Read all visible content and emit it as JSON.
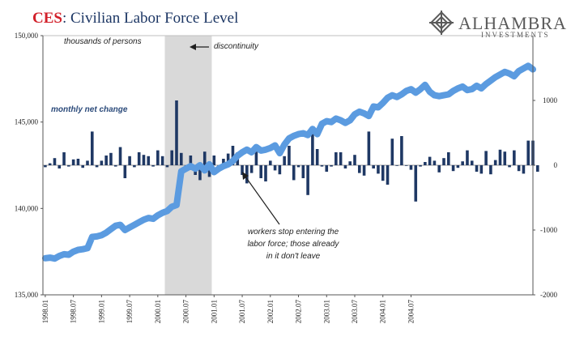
{
  "header": {
    "title_prefix": "CES",
    "title_rest": ": Civilian Labor Force Level",
    "logo_name": "ALHAMBRA",
    "logo_sub": "INVESTMENTS"
  },
  "notes": {
    "units": "thousands of persons",
    "series2": "monthly net change",
    "discontinuity": "discontinuity",
    "workers": [
      "workers stop entering the",
      "labor force; those already",
      "in it don't leave"
    ]
  },
  "colors": {
    "line": "#5b9be0",
    "bars": "#1f3864",
    "shade": "#d9d9d9",
    "title": "#1c3664",
    "accent": "#d2202a"
  },
  "chart_data": {
    "type": "bar",
    "x_tick_labels": [
      "1998.01",
      "1998.07",
      "1999.01",
      "1999.07",
      "2000.01",
      "2000.07",
      "2001.01",
      "2001.07",
      "2002.01",
      "2002.07",
      "2003.01",
      "2003.07",
      "2004.01",
      "2004.07"
    ],
    "y_left": {
      "ticks": [
        "150,000",
        "145,000",
        "140,000",
        "135,000"
      ],
      "range": [
        135000,
        150000
      ]
    },
    "y_right": {
      "ticks": [
        "1000",
        "0",
        "-1000",
        "-2000"
      ],
      "range": [
        -2000,
        2000
      ]
    },
    "shaded_period": [
      "2000.03",
      "2001.01"
    ],
    "series": [
      {
        "name": "Civilian Labor Force Level",
        "kind": "line",
        "axis": "left",
        "start": "1998.01",
        "values": [
          137120,
          137150,
          137100,
          137250,
          137350,
          137320,
          137500,
          137600,
          137640,
          137700,
          138350,
          138380,
          138450,
          138600,
          138800,
          139000,
          139050,
          138750,
          138900,
          139050,
          139200,
          139350,
          139450,
          139400,
          139600,
          139750,
          139850,
          140100,
          140200,
          142150,
          142300,
          142450,
          142300,
          142500,
          142200,
          142550,
          142100,
          142300,
          142450,
          142550,
          142750,
          143050,
          143250,
          143400,
          143250,
          143550,
          143350,
          143400,
          143500,
          143650,
          143200,
          143700,
          144050,
          144200,
          144300,
          144350,
          144250,
          144600,
          144300,
          144900,
          145050,
          145000,
          145200,
          145100,
          144950,
          145100,
          145450,
          145600,
          145500,
          145350,
          145900,
          145850,
          146100,
          146400,
          146550,
          146450,
          146600,
          146800,
          146900,
          146700,
          146900,
          147150,
          146750,
          146550,
          146500,
          146550,
          146600,
          146800,
          146950,
          147050,
          146850,
          146900,
          147100,
          146950,
          147200,
          147400,
          147600,
          147750,
          147900,
          147800,
          147650,
          147950,
          148100,
          148250,
          148050
        ]
      },
      {
        "name": "monthly net change",
        "kind": "bar",
        "axis": "right",
        "start": "1998.01",
        "values": [
          -30,
          30,
          110,
          -50,
          200,
          -20,
          90,
          100,
          -40,
          70,
          520,
          -30,
          70,
          150,
          190,
          -20,
          280,
          -200,
          140,
          -30,
          200,
          160,
          140,
          -20,
          230,
          140,
          -30,
          230,
          1000,
          190,
          -10,
          150,
          -150,
          -230,
          210,
          -180,
          150,
          -40,
          100,
          180,
          300,
          200,
          -150,
          -280,
          -120,
          210,
          -200,
          -250,
          70,
          -80,
          -140,
          140,
          300,
          -230,
          -30,
          -200,
          -460,
          520,
          250,
          -20,
          -100,
          -20,
          200,
          200,
          -50,
          60,
          160,
          -120,
          -160,
          520,
          -50,
          -130,
          -240,
          -300,
          410,
          -10,
          450,
          -10,
          -70,
          -560,
          -20,
          50,
          130,
          70,
          -110,
          110,
          200,
          -90,
          -40,
          60,
          230,
          70,
          -100,
          -130,
          220,
          -140,
          80,
          240,
          210,
          -30,
          230,
          -90,
          -130,
          380,
          380,
          -100
        ]
      }
    ]
  }
}
